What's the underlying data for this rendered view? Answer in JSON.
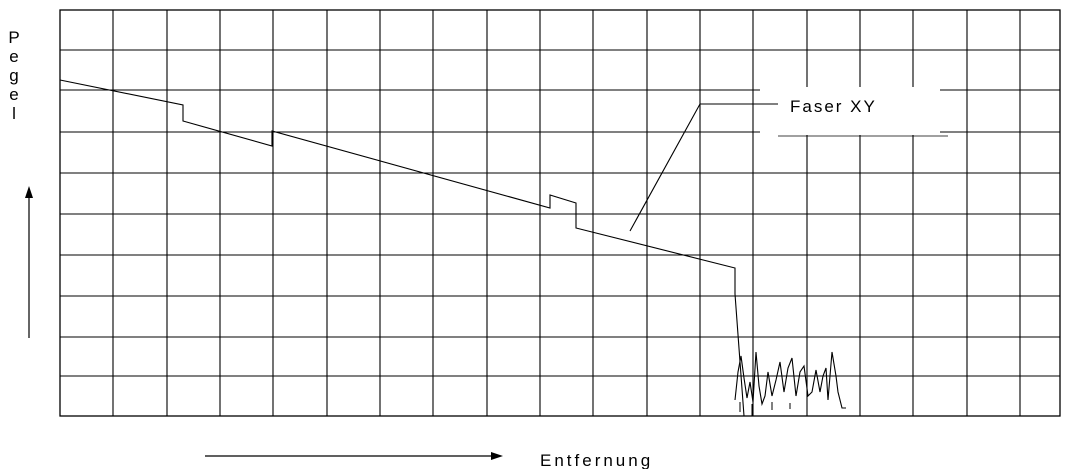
{
  "diagram": {
    "title": "",
    "y_axis_label": "Pegel",
    "x_axis_label": "Entfernung",
    "trace_label": "Faser XY"
  }
}
